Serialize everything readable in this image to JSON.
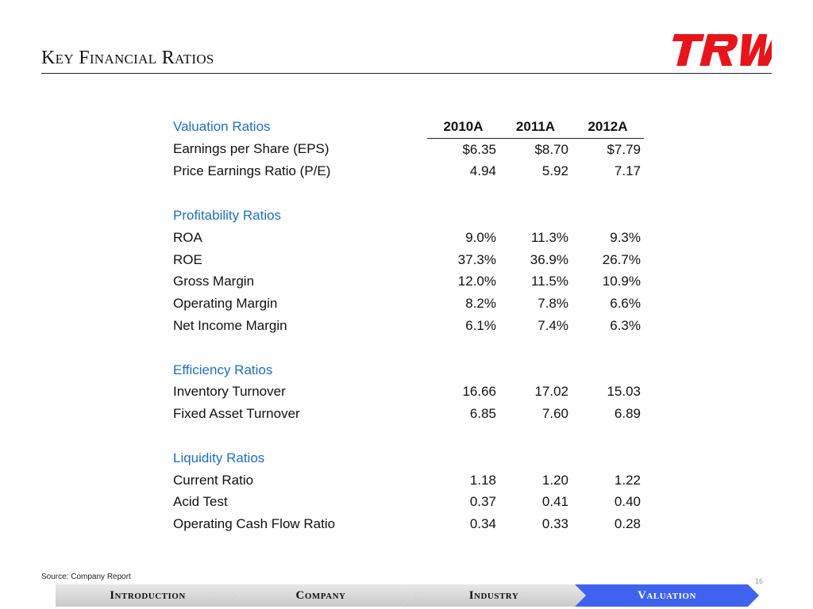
{
  "page": {
    "title": "Key Financial Ratios",
    "logo_text": "TRW",
    "source": "Source: Company Report",
    "page_number": "16"
  },
  "colors": {
    "section_header": "#1f6fbf",
    "logo": "#e8141b",
    "nav_active": "#3f63f0"
  },
  "table": {
    "columns": [
      "2010A",
      "2011A",
      "2012A"
    ],
    "sections": [
      {
        "label": "Valuation Ratios",
        "rows": [
          {
            "label": "Earnings per Share (EPS)",
            "values": [
              "$6.35",
              "$8.70",
              "$7.79"
            ]
          },
          {
            "label": "Price Earnings Ratio (P/E)",
            "values": [
              "4.94",
              "5.92",
              "7.17"
            ]
          }
        ]
      },
      {
        "label": "Profitability Ratios",
        "rows": [
          {
            "label": "ROA",
            "values": [
              "9.0%",
              "11.3%",
              "9.3%"
            ]
          },
          {
            "label": "ROE",
            "values": [
              "37.3%",
              "36.9%",
              "26.7%"
            ]
          },
          {
            "label": "Gross Margin",
            "values": [
              "12.0%",
              "11.5%",
              "10.9%"
            ]
          },
          {
            "label": "Operating Margin",
            "values": [
              "8.2%",
              "7.8%",
              "6.6%"
            ]
          },
          {
            "label": "Net Income Margin",
            "values": [
              "6.1%",
              "7.4%",
              "6.3%"
            ]
          }
        ]
      },
      {
        "label": "Efficiency Ratios",
        "rows": [
          {
            "label": "Inventory Turnover",
            "values": [
              "16.66",
              "17.02",
              "15.03"
            ]
          },
          {
            "label": "Fixed Asset Turnover",
            "values": [
              "6.85",
              "7.60",
              "6.89"
            ]
          }
        ]
      },
      {
        "label": "Liquidity Ratios",
        "rows": [
          {
            "label": "Current Ratio",
            "values": [
              "1.18",
              "1.20",
              "1.22"
            ]
          },
          {
            "label": "Acid Test",
            "values": [
              "0.37",
              "0.41",
              "0.40"
            ]
          },
          {
            "label": "Operating Cash Flow Ratio",
            "values": [
              "0.34",
              "0.33",
              "0.28"
            ]
          }
        ]
      }
    ]
  },
  "nav": {
    "steps": [
      {
        "label": "Introduction",
        "active": false
      },
      {
        "label": "Company",
        "active": false
      },
      {
        "label": "Industry",
        "active": false
      },
      {
        "label": "Valuation",
        "active": true
      }
    ]
  }
}
